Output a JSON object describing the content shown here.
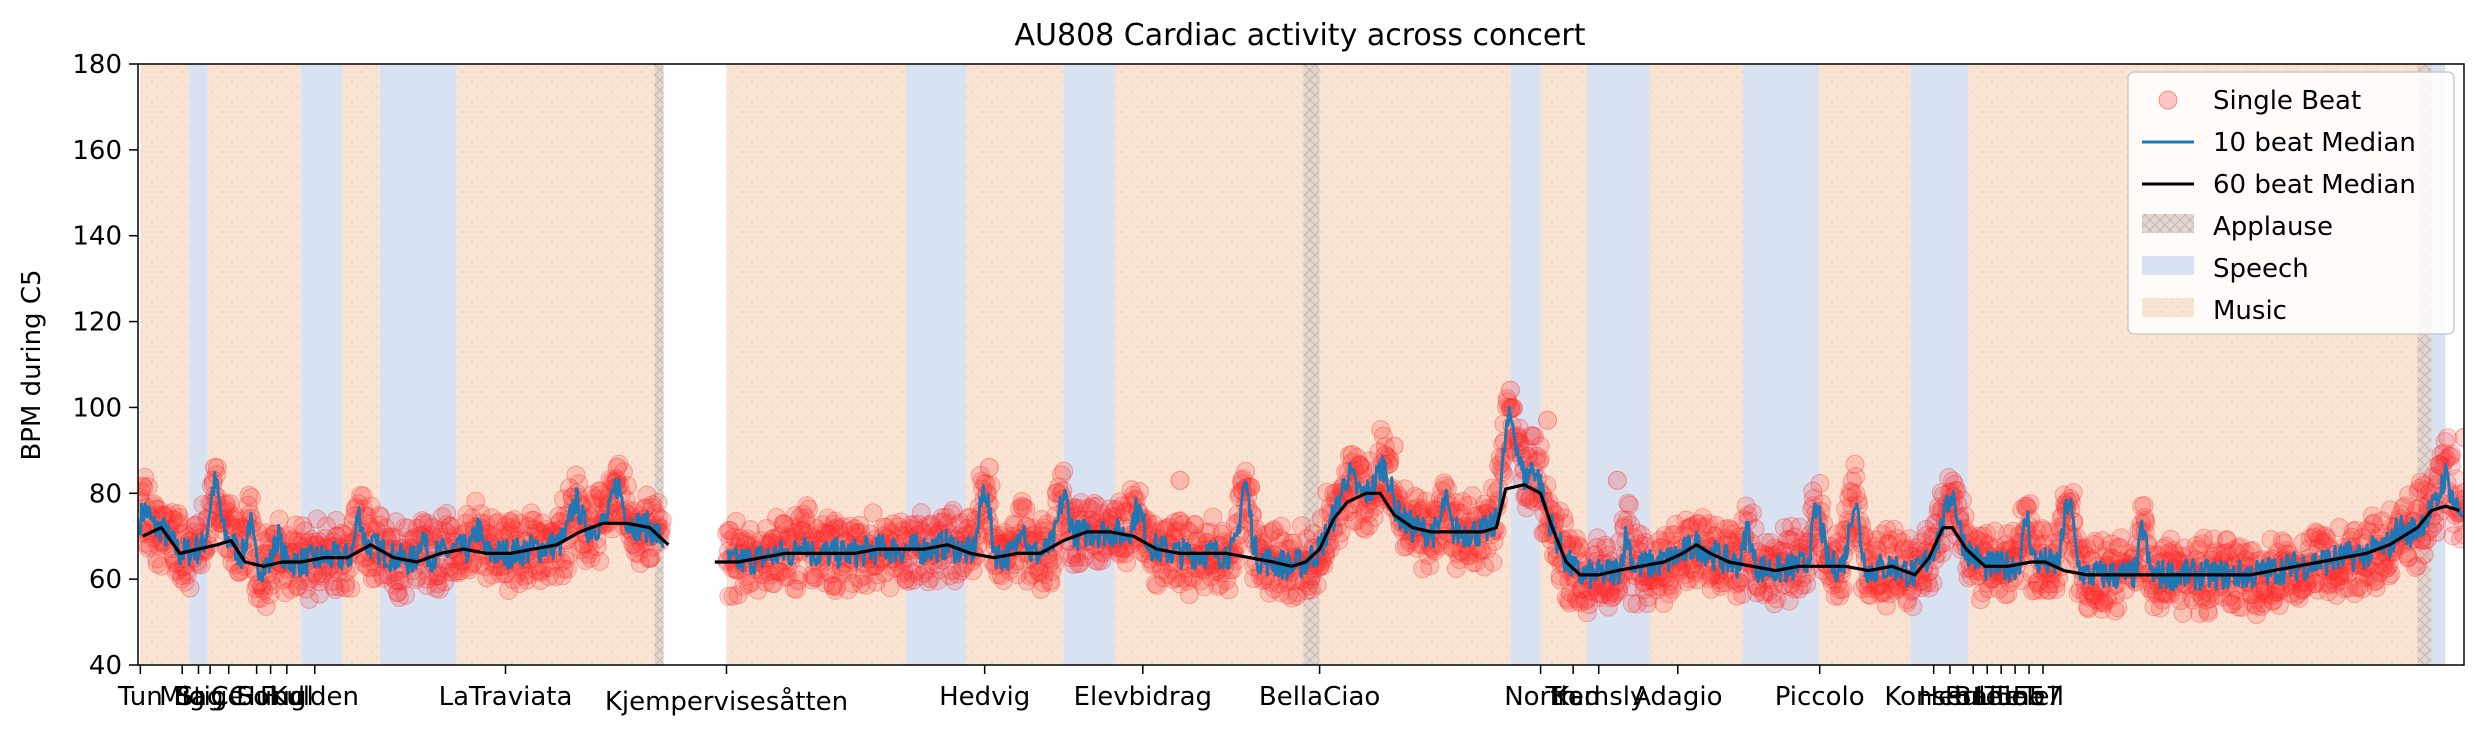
{
  "chart_data": {
    "type": "scatter",
    "title": "AU808 Cardiac activity across concert",
    "xlabel": "",
    "ylabel": "BPM during C5",
    "ylim": [
      40,
      180
    ],
    "yticks": [
      40,
      60,
      80,
      100,
      120,
      140,
      160,
      180
    ],
    "xlim": [
      0,
      1000
    ],
    "legend_position": "top-right",
    "colors": {
      "beat": "#ff2a2a",
      "median10": "#1f77b4",
      "median60": "#000000",
      "applause": "#d8c8c0",
      "speech": "#d8e2f0",
      "music": "#f8e2d2"
    },
    "legend": [
      "Single Beat",
      "10 beat Median",
      "60 beat Median",
      "Applause",
      "Speech",
      "Music"
    ],
    "segments": [
      {
        "type": "music",
        "start": 1,
        "end": 22
      },
      {
        "type": "speech",
        "start": 22,
        "end": 30
      },
      {
        "type": "music",
        "start": 30,
        "end": 70
      },
      {
        "type": "speech",
        "start": 70,
        "end": 88
      },
      {
        "type": "music",
        "start": 88,
        "end": 104
      },
      {
        "type": "speech",
        "start": 104,
        "end": 137
      },
      {
        "type": "music",
        "start": 137,
        "end": 222
      },
      {
        "type": "applause",
        "start": 222,
        "end": 226
      },
      {
        "type": "music",
        "start": 253,
        "end": 330
      },
      {
        "type": "speech",
        "start": 330,
        "end": 356
      },
      {
        "type": "music",
        "start": 356,
        "end": 398
      },
      {
        "type": "speech",
        "start": 398,
        "end": 420
      },
      {
        "type": "music",
        "start": 420,
        "end": 501
      },
      {
        "type": "applause",
        "start": 501,
        "end": 508
      },
      {
        "type": "music",
        "start": 508,
        "end": 590
      },
      {
        "type": "speech",
        "start": 590,
        "end": 603
      },
      {
        "type": "music",
        "start": 603,
        "end": 623
      },
      {
        "type": "speech",
        "start": 623,
        "end": 650
      },
      {
        "type": "music",
        "start": 650,
        "end": 690
      },
      {
        "type": "speech",
        "start": 690,
        "end": 723
      },
      {
        "type": "music",
        "start": 723,
        "end": 762
      },
      {
        "type": "speech",
        "start": 762,
        "end": 787
      },
      {
        "type": "music",
        "start": 787,
        "end": 980
      },
      {
        "type": "applause",
        "start": 980,
        "end": 986
      },
      {
        "type": "speech",
        "start": 986,
        "end": 992
      }
    ],
    "section_ticks": [
      {
        "label": "Tun",
        "x": 1
      },
      {
        "label": "Mig",
        "x": 19
      },
      {
        "label": "Bag",
        "x": 26
      },
      {
        "label": "Stige",
        "x": 31
      },
      {
        "label": "CC",
        "x": 39
      },
      {
        "label": "Sol",
        "x": 51
      },
      {
        "label": "Hund",
        "x": 57
      },
      {
        "label": "Fugl",
        "x": 64
      },
      {
        "label": "Kulden",
        "x": 76
      },
      {
        "label": "LaTraviata",
        "x": 158
      },
      {
        "label": "Kjempervisesåtten",
        "x": 253
      },
      {
        "label": "Hedvig",
        "x": 364
      },
      {
        "label": "Elevbidrag",
        "x": 432
      },
      {
        "label": "BellaCiao",
        "x": 508
      },
      {
        "label": "North",
        "x": 603
      },
      {
        "label": "Trad",
        "x": 617
      },
      {
        "label": "Kemsly",
        "x": 628
      },
      {
        "label": "Adagio",
        "x": 662
      },
      {
        "label": "Piccolo",
        "x": 723
      },
      {
        "label": "Konsert",
        "x": 772
      },
      {
        "label": "Hebr",
        "x": 779
      },
      {
        "label": "Rule",
        "x": 789
      },
      {
        "label": "Bane",
        "x": 795
      },
      {
        "label": "Lille",
        "x": 801
      },
      {
        "label": "Tune",
        "x": 807
      },
      {
        "label": "5557",
        "x": 813
      },
      {
        "label": "Tell",
        "x": 819
      }
    ],
    "median60": [
      [
        2,
        70
      ],
      [
        10,
        72
      ],
      [
        18,
        66
      ],
      [
        26,
        67
      ],
      [
        34,
        68
      ],
      [
        40,
        69
      ],
      [
        46,
        64
      ],
      [
        54,
        63
      ],
      [
        62,
        64
      ],
      [
        70,
        64
      ],
      [
        80,
        65
      ],
      [
        90,
        65
      ],
      [
        100,
        68
      ],
      [
        110,
        65
      ],
      [
        120,
        64
      ],
      [
        130,
        66
      ],
      [
        140,
        67
      ],
      [
        150,
        66
      ],
      [
        160,
        66
      ],
      [
        170,
        67
      ],
      [
        180,
        68
      ],
      [
        190,
        71
      ],
      [
        200,
        73
      ],
      [
        210,
        73
      ],
      [
        220,
        72
      ],
      [
        228,
        68
      ],
      [
        238,
        66
      ],
      [
        248,
        64
      ],
      [
        258,
        64
      ],
      [
        268,
        65
      ],
      [
        278,
        66
      ],
      [
        288,
        66
      ],
      [
        298,
        66
      ],
      [
        308,
        66
      ],
      [
        318,
        67
      ],
      [
        328,
        67
      ],
      [
        338,
        67
      ],
      [
        348,
        68
      ],
      [
        358,
        66
      ],
      [
        368,
        65
      ],
      [
        378,
        66
      ],
      [
        388,
        66
      ],
      [
        398,
        69
      ],
      [
        408,
        71
      ],
      [
        418,
        71
      ],
      [
        428,
        70
      ],
      [
        438,
        67
      ],
      [
        448,
        66
      ],
      [
        458,
        66
      ],
      [
        468,
        66
      ],
      [
        478,
        65
      ],
      [
        488,
        64
      ],
      [
        496,
        63
      ],
      [
        502,
        64
      ],
      [
        508,
        67
      ],
      [
        514,
        74
      ],
      [
        520,
        78
      ],
      [
        528,
        80
      ],
      [
        534,
        80
      ],
      [
        540,
        75
      ],
      [
        548,
        72
      ],
      [
        556,
        71
      ],
      [
        564,
        71
      ],
      [
        572,
        71
      ],
      [
        578,
        71
      ],
      [
        584,
        72
      ],
      [
        588,
        81
      ],
      [
        596,
        82
      ],
      [
        603,
        80
      ],
      [
        608,
        72
      ],
      [
        614,
        64
      ],
      [
        620,
        61
      ],
      [
        628,
        61
      ],
      [
        636,
        62
      ],
      [
        646,
        63
      ],
      [
        656,
        64
      ],
      [
        664,
        66
      ],
      [
        670,
        68
      ],
      [
        676,
        66
      ],
      [
        684,
        64
      ],
      [
        694,
        63
      ],
      [
        704,
        62
      ],
      [
        714,
        63
      ],
      [
        724,
        63
      ],
      [
        734,
        63
      ],
      [
        744,
        62
      ],
      [
        754,
        63
      ],
      [
        764,
        61
      ],
      [
        770,
        65
      ],
      [
        776,
        72
      ],
      [
        780,
        72
      ],
      [
        786,
        67
      ],
      [
        794,
        63
      ],
      [
        804,
        63
      ],
      [
        814,
        64
      ],
      [
        820,
        64
      ],
      [
        828,
        62
      ],
      [
        838,
        61
      ],
      [
        848,
        61
      ],
      [
        858,
        61
      ],
      [
        868,
        61
      ],
      [
        878,
        61
      ],
      [
        888,
        61
      ],
      [
        898,
        61
      ],
      [
        908,
        61
      ],
      [
        918,
        62
      ],
      [
        928,
        63
      ],
      [
        938,
        64
      ],
      [
        948,
        65
      ],
      [
        958,
        66
      ],
      [
        968,
        68
      ],
      [
        974,
        70
      ],
      [
        980,
        72
      ],
      [
        986,
        76
      ],
      [
        992,
        77
      ],
      [
        998,
        76
      ]
    ],
    "median10_peaks": [
      {
        "x": 3,
        "y": 76,
        "w": 3
      },
      {
        "x": 33,
        "y": 82,
        "w": 3
      },
      {
        "x": 48,
        "y": 73,
        "w": 2
      },
      {
        "x": 60,
        "y": 70,
        "w": 2
      },
      {
        "x": 95,
        "y": 75,
        "w": 2
      },
      {
        "x": 122,
        "y": 70,
        "w": 2
      },
      {
        "x": 146,
        "y": 72,
        "w": 2
      },
      {
        "x": 188,
        "y": 78,
        "w": 3
      },
      {
        "x": 206,
        "y": 82,
        "w": 3
      },
      {
        "x": 286,
        "y": 70,
        "w": 2
      },
      {
        "x": 364,
        "y": 81,
        "w": 3
      },
      {
        "x": 380,
        "y": 74,
        "w": 2
      },
      {
        "x": 398,
        "y": 79,
        "w": 3
      },
      {
        "x": 430,
        "y": 76,
        "w": 3
      },
      {
        "x": 476,
        "y": 82,
        "w": 3
      },
      {
        "x": 520,
        "y": 84,
        "w": 4
      },
      {
        "x": 536,
        "y": 86,
        "w": 4
      },
      {
        "x": 562,
        "y": 78,
        "w": 2
      },
      {
        "x": 590,
        "y": 97,
        "w": 4
      },
      {
        "x": 600,
        "y": 86,
        "w": 3
      },
      {
        "x": 640,
        "y": 70,
        "w": 2
      },
      {
        "x": 692,
        "y": 72,
        "w": 2
      },
      {
        "x": 722,
        "y": 76,
        "w": 3
      },
      {
        "x": 738,
        "y": 78,
        "w": 3
      },
      {
        "x": 780,
        "y": 80,
        "w": 3
      },
      {
        "x": 812,
        "y": 74,
        "w": 2
      },
      {
        "x": 830,
        "y": 78,
        "w": 3
      },
      {
        "x": 862,
        "y": 72,
        "w": 2
      },
      {
        "x": 972,
        "y": 72,
        "w": 2
      },
      {
        "x": 992,
        "y": 84,
        "w": 3
      }
    ],
    "beat_outliers": [
      {
        "x": 590,
        "y": 104
      },
      {
        "x": 606,
        "y": 97
      },
      {
        "x": 1000,
        "y": 93
      },
      {
        "x": 636,
        "y": 83
      },
      {
        "x": 448,
        "y": 83
      },
      {
        "x": 33,
        "y": 86
      },
      {
        "x": 366,
        "y": 86
      },
      {
        "x": 206,
        "y": 86
      },
      {
        "x": 540,
        "y": 91
      },
      {
        "x": 522,
        "y": 89
      }
    ]
  }
}
